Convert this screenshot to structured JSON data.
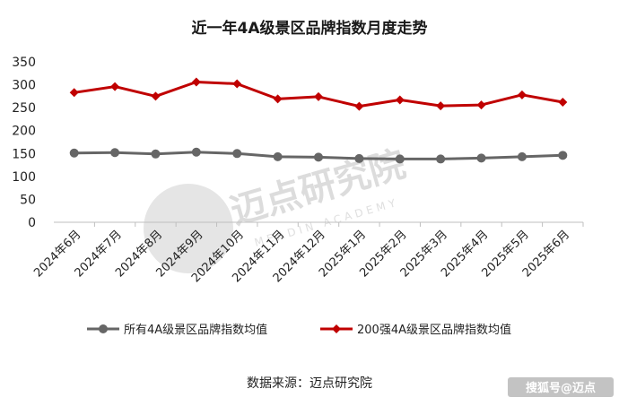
{
  "chart_data": {
    "type": "line",
    "title": "近一年4A级景区品牌指数月度走势",
    "categories": [
      "2024年6月",
      "2024年7月",
      "2024年8月",
      "2024年9月",
      "2024年10月",
      "2024年11月",
      "2024年12月",
      "2025年1月",
      "2025年2月",
      "2025年3月",
      "2025年4月",
      "2025年5月",
      "2025年6月"
    ],
    "series": [
      {
        "name": "所有4A级景区品牌指数均值",
        "color": "#666666",
        "values": [
          151,
          152,
          149,
          153,
          150,
          143,
          142,
          139,
          138,
          138,
          140,
          143,
          146
        ]
      },
      {
        "name": "200强4A级景区品牌指数均值",
        "color": "#c00000",
        "values": [
          283,
          296,
          275,
          306,
          302,
          269,
          274,
          253,
          267,
          254,
          256,
          278,
          262
        ]
      }
    ],
    "y_ticks": [
      0,
      50,
      100,
      150,
      200,
      250,
      300,
      350
    ],
    "ylim": [
      0,
      350
    ],
    "grid": false,
    "legend_position": "bottom"
  },
  "source_text": "数据来源：迈点研究院",
  "watermark": {
    "brand_text": "迈点研究院",
    "sub_text": "MEADIN ACADEMY",
    "corner_text": "搜狐号@迈点"
  }
}
